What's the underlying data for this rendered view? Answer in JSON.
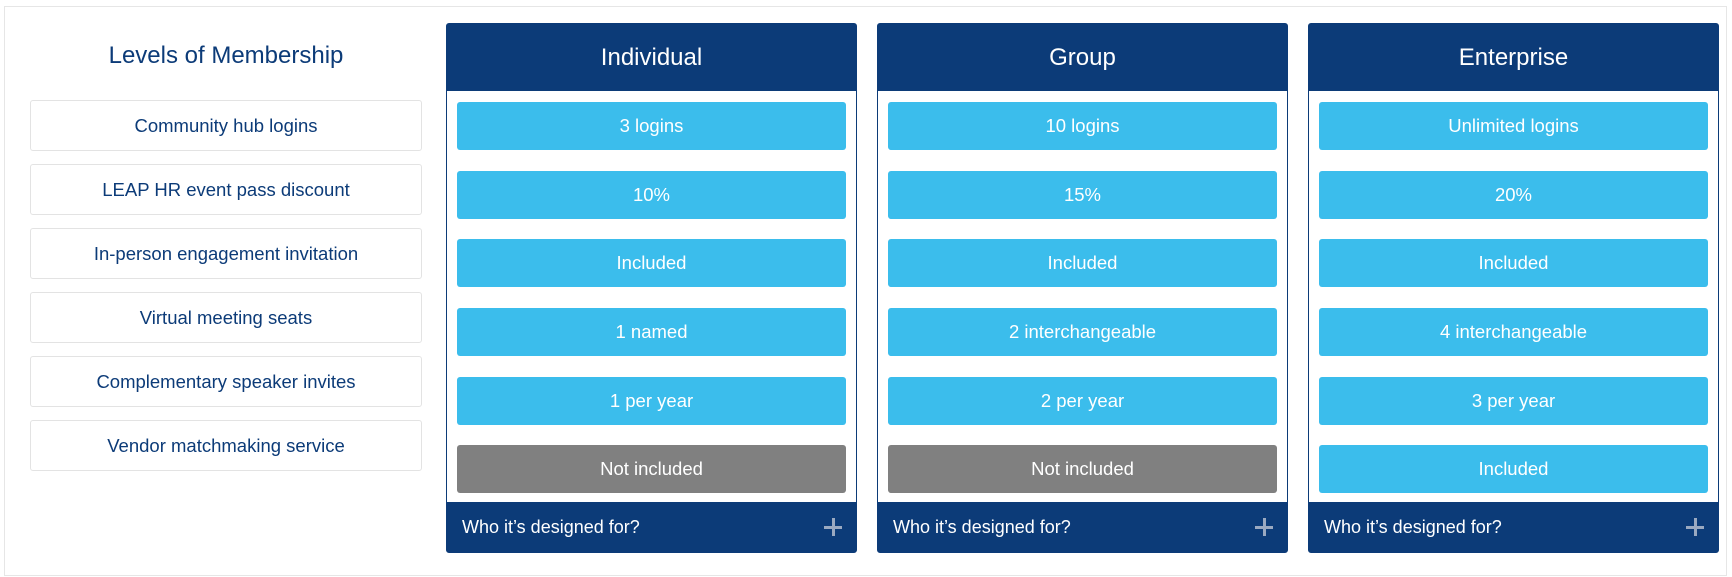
{
  "colors": {
    "navy": "#0c3b78",
    "included_cell": "#3bbdec",
    "not_included_cell": "#808080",
    "label_text": "#0c3b78"
  },
  "features": {
    "title": "Levels of Membership",
    "items": [
      "Community hub logins",
      "LEAP HR event pass discount",
      "In-person engagement invitation",
      "Virtual meeting seats",
      "Complementary speaker invites",
      "Vendor matchmaking service"
    ]
  },
  "plans": [
    {
      "name": "Individual",
      "cells": [
        {
          "text": "3 logins",
          "included": true
        },
        {
          "text": "10%",
          "included": true
        },
        {
          "text": "Included",
          "included": true
        },
        {
          "text": "1 named",
          "included": true
        },
        {
          "text": "1 per year",
          "included": true
        },
        {
          "text": "Not included",
          "included": false
        }
      ],
      "footer": "Who it’s designed for?",
      "footer_icon": "plus-icon"
    },
    {
      "name": "Group",
      "cells": [
        {
          "text": "10 logins",
          "included": true
        },
        {
          "text": "15%",
          "included": true
        },
        {
          "text": "Included",
          "included": true
        },
        {
          "text": "2 interchangeable",
          "included": true
        },
        {
          "text": "2 per year",
          "included": true
        },
        {
          "text": "Not included",
          "included": false
        }
      ],
      "footer": "Who it’s designed for?",
      "footer_icon": "plus-icon"
    },
    {
      "name": "Enterprise",
      "cells": [
        {
          "text": "Unlimited logins",
          "included": true
        },
        {
          "text": "20%",
          "included": true
        },
        {
          "text": "Included",
          "included": true
        },
        {
          "text": "4 interchangeable",
          "included": true
        },
        {
          "text": "3 per year",
          "included": true
        },
        {
          "text": "Included",
          "included": true
        }
      ],
      "footer": "Who it’s designed for?",
      "footer_icon": "plus-icon"
    }
  ]
}
